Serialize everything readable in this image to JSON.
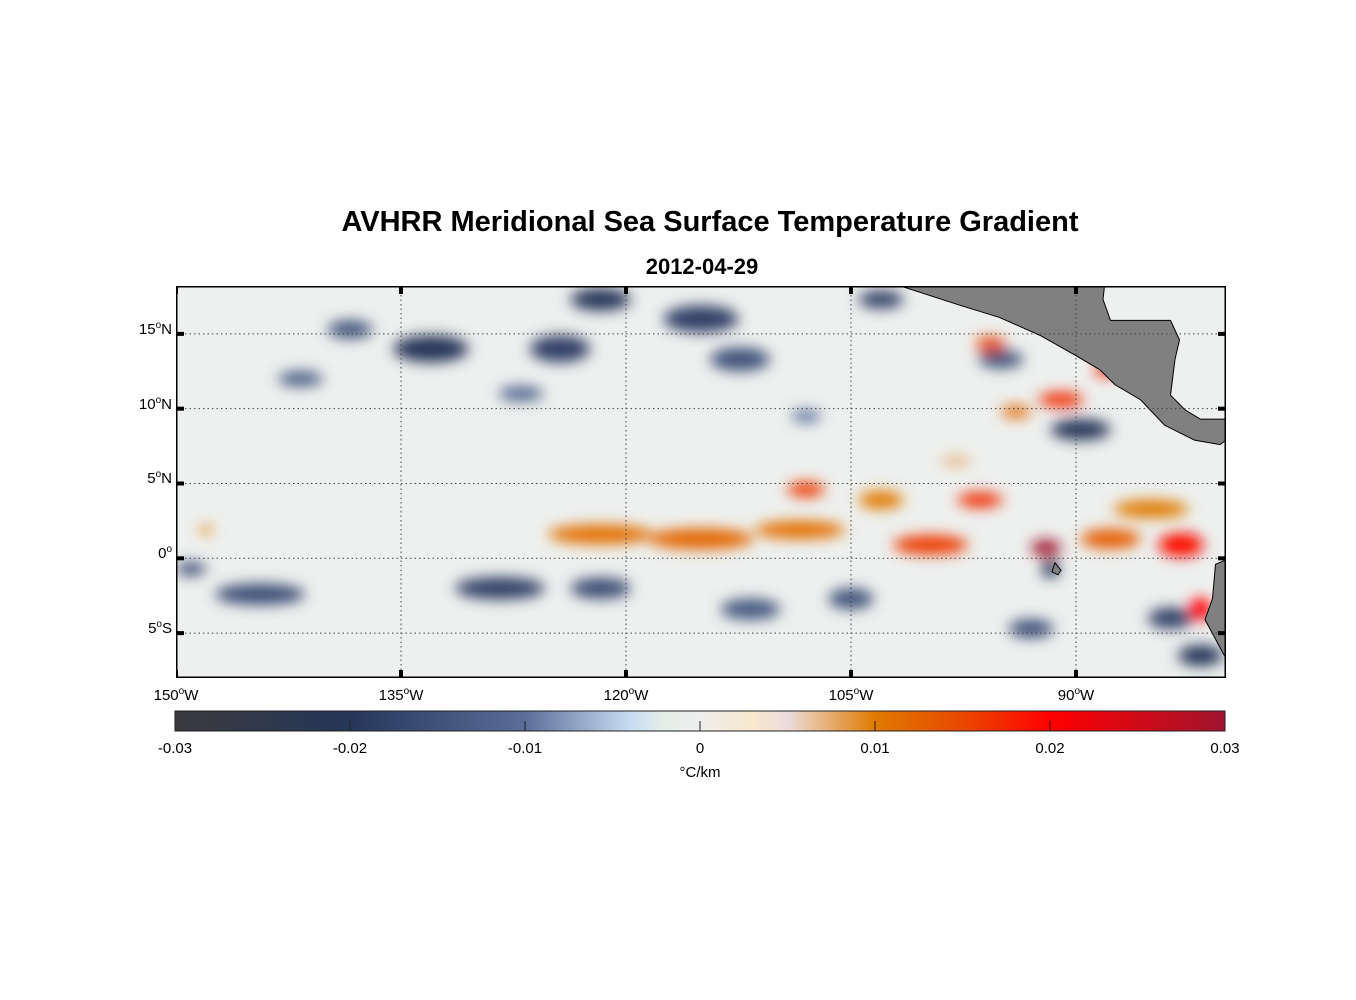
{
  "title": "AVHRR Meridional Sea Surface Temperature Gradient",
  "subtitle": "2012-04-29",
  "chart_data": {
    "type": "heatmap",
    "title": "AVHRR Meridional Sea Surface Temperature Gradient",
    "subtitle": "2012-04-29",
    "lon_range": [
      -150,
      -80
    ],
    "lat_range": [
      -8,
      18.2
    ],
    "x_ticks": [
      {
        "value": -150,
        "deg": "150",
        "hem": "W"
      },
      {
        "value": -135,
        "deg": "135",
        "hem": "W"
      },
      {
        "value": -120,
        "deg": "120",
        "hem": "W"
      },
      {
        "value": -105,
        "deg": "105",
        "hem": "W"
      },
      {
        "value": -90,
        "deg": "90",
        "hem": "W"
      }
    ],
    "y_ticks": [
      {
        "value": 15,
        "deg": "15",
        "hem": "N"
      },
      {
        "value": 10,
        "deg": "10",
        "hem": "N"
      },
      {
        "value": 5,
        "deg": "5",
        "hem": "N"
      },
      {
        "value": 0,
        "deg": "0",
        "hem": ""
      },
      {
        "value": -5,
        "deg": "5",
        "hem": "S"
      }
    ],
    "grid": "dotted",
    "colorbar": {
      "label": "°C/km",
      "range": [
        -0.03,
        0.03
      ],
      "ticks": [
        "-0.03",
        "-0.02",
        "-0.01",
        "0",
        "0.01",
        "0.02",
        "0.03"
      ],
      "stops": [
        [
          -0.03,
          "#3a3a3e"
        ],
        [
          -0.02,
          "#253659"
        ],
        [
          -0.01,
          "#5a6e99"
        ],
        [
          -0.004,
          "#c8dcf2"
        ],
        [
          -0.002,
          "#e4efe8"
        ],
        [
          0,
          "#eeeeee"
        ],
        [
          0.003,
          "#f8e8cc"
        ],
        [
          0.005,
          "#ecdcdc"
        ],
        [
          0.01,
          "#e07a00"
        ],
        [
          0.015,
          "#e84800"
        ],
        [
          0.02,
          "#ff0000"
        ],
        [
          0.03,
          "#a0142f"
        ]
      ]
    },
    "features": [
      {
        "lon": -121.7,
        "lat": 17.3,
        "w": 4,
        "h": 1.5,
        "v": -0.02
      },
      {
        "lon": -115,
        "lat": 16,
        "w": 5,
        "h": 1.8,
        "v": -0.018
      },
      {
        "lon": -133,
        "lat": 14,
        "w": 5,
        "h": 1.8,
        "v": -0.02
      },
      {
        "lon": -124.4,
        "lat": 14,
        "w": 4,
        "h": 1.8,
        "v": -0.018
      },
      {
        "lon": -112.4,
        "lat": 13.3,
        "w": 4,
        "h": 1.6,
        "v": -0.015
      },
      {
        "lon": -138.4,
        "lat": 15.3,
        "w": 3,
        "h": 1.2,
        "v": -0.015
      },
      {
        "lon": -103,
        "lat": 17.3,
        "w": 3,
        "h": 1.2,
        "v": -0.018
      },
      {
        "lon": -141.7,
        "lat": 12,
        "w": 3,
        "h": 1,
        "v": -0.014
      },
      {
        "lon": -89.7,
        "lat": 8.6,
        "w": 4,
        "h": 1.4,
        "v": -0.02
      },
      {
        "lon": -95,
        "lat": 13.3,
        "w": 3,
        "h": 1.2,
        "v": -0.015
      },
      {
        "lon": -127,
        "lat": 11,
        "w": 3,
        "h": 1,
        "v": -0.012
      },
      {
        "lon": -108,
        "lat": 9.5,
        "w": 2,
        "h": 0.8,
        "v": -0.01
      },
      {
        "lon": -144.4,
        "lat": -2.4,
        "w": 6,
        "h": 1.4,
        "v": -0.016
      },
      {
        "lon": -128.4,
        "lat": -2,
        "w": 6,
        "h": 1.5,
        "v": -0.018
      },
      {
        "lon": -121.7,
        "lat": -2,
        "w": 4,
        "h": 1.4,
        "v": -0.016
      },
      {
        "lon": -111.7,
        "lat": -3.4,
        "w": 4,
        "h": 1.4,
        "v": -0.014
      },
      {
        "lon": -105,
        "lat": -2.7,
        "w": 3,
        "h": 1.4,
        "v": -0.015
      },
      {
        "lon": -91.7,
        "lat": -0.7,
        "w": 1.2,
        "h": 1.2,
        "v": -0.02
      },
      {
        "lon": -83.7,
        "lat": -4,
        "w": 3,
        "h": 1.4,
        "v": -0.018
      },
      {
        "lon": -81.7,
        "lat": -6.5,
        "w": 3,
        "h": 1.4,
        "v": -0.02
      },
      {
        "lon": -149,
        "lat": -0.7,
        "w": 2,
        "h": 0.9,
        "v": -0.016
      },
      {
        "lon": -93,
        "lat": -4.7,
        "w": 3,
        "h": 1.2,
        "v": -0.016
      },
      {
        "lon": -121.7,
        "lat": 1.6,
        "w": 7,
        "h": 1.3,
        "v": 0.011
      },
      {
        "lon": -115,
        "lat": 1.3,
        "w": 7,
        "h": 1.4,
        "v": 0.012
      },
      {
        "lon": -108.4,
        "lat": 1.9,
        "w": 6,
        "h": 1.2,
        "v": 0.011
      },
      {
        "lon": -99.7,
        "lat": 0.9,
        "w": 5,
        "h": 1.3,
        "v": 0.016
      },
      {
        "lon": -108,
        "lat": 4.6,
        "w": 2.5,
        "h": 1,
        "v": 0.016
      },
      {
        "lon": -103,
        "lat": 3.9,
        "w": 3,
        "h": 1.2,
        "v": 0.01
      },
      {
        "lon": -96.4,
        "lat": 3.9,
        "w": 3,
        "h": 1,
        "v": 0.017
      },
      {
        "lon": -92,
        "lat": 0.7,
        "w": 2,
        "h": 1.1,
        "v": 0.03
      },
      {
        "lon": -87.7,
        "lat": 1.3,
        "w": 4,
        "h": 1.3,
        "v": 0.013
      },
      {
        "lon": -83,
        "lat": 0.9,
        "w": 3,
        "h": 1.6,
        "v": 0.019
      },
      {
        "lon": -85,
        "lat": 3.3,
        "w": 5,
        "h": 1.2,
        "v": 0.01
      },
      {
        "lon": -91,
        "lat": 10.6,
        "w": 3,
        "h": 1,
        "v": 0.017
      },
      {
        "lon": -95.7,
        "lat": 14.3,
        "w": 2,
        "h": 1,
        "v": 0.015
      },
      {
        "lon": -88,
        "lat": 12.6,
        "w": 1.5,
        "h": 0.9,
        "v": 0.018
      },
      {
        "lon": -81.7,
        "lat": -3.4,
        "w": 1.5,
        "h": 1.5,
        "v": 0.02
      },
      {
        "lon": -148,
        "lat": 1.9,
        "w": 0.8,
        "h": 0.6,
        "v": 0.01
      },
      {
        "lon": -94,
        "lat": 9.8,
        "w": 2,
        "h": 0.8,
        "v": 0.012
      },
      {
        "lon": -98,
        "lat": 6.5,
        "w": 2,
        "h": 0.7,
        "v": 0.007
      }
    ],
    "land": [
      [
        [
          -101.7,
          18.2
        ],
        [
          -97.7,
          16.9
        ],
        [
          -95.1,
          16.1
        ],
        [
          -92.4,
          14.9
        ],
        [
          -90.1,
          13.6
        ],
        [
          -88.4,
          12.6
        ],
        [
          -87.4,
          11.6
        ],
        [
          -85.7,
          10.6
        ],
        [
          -84.1,
          8.9
        ],
        [
          -82.1,
          7.9
        ],
        [
          -80.4,
          7.6
        ],
        [
          -80,
          7.9
        ],
        [
          -80,
          9.3
        ],
        [
          -81.7,
          9.3
        ],
        [
          -82.7,
          9.9
        ],
        [
          -83.7,
          10.9
        ],
        [
          -83.4,
          13.3
        ],
        [
          -83.1,
          14.6
        ],
        [
          -83.7,
          15.9
        ],
        [
          -87.7,
          15.9
        ],
        [
          -88.2,
          17.3
        ],
        [
          -88.1,
          18.2
        ]
      ],
      [
        [
          -80,
          -0.1
        ],
        [
          -80.7,
          -0.4
        ],
        [
          -80.9,
          -2.7
        ],
        [
          -81.4,
          -4.1
        ],
        [
          -80.7,
          -5.4
        ],
        [
          -80,
          -6.7
        ]
      ],
      [
        [
          -91.4,
          -0.3
        ],
        [
          -91,
          -0.8
        ],
        [
          -91.2,
          -1.1
        ],
        [
          -91.6,
          -0.9
        ]
      ]
    ]
  }
}
